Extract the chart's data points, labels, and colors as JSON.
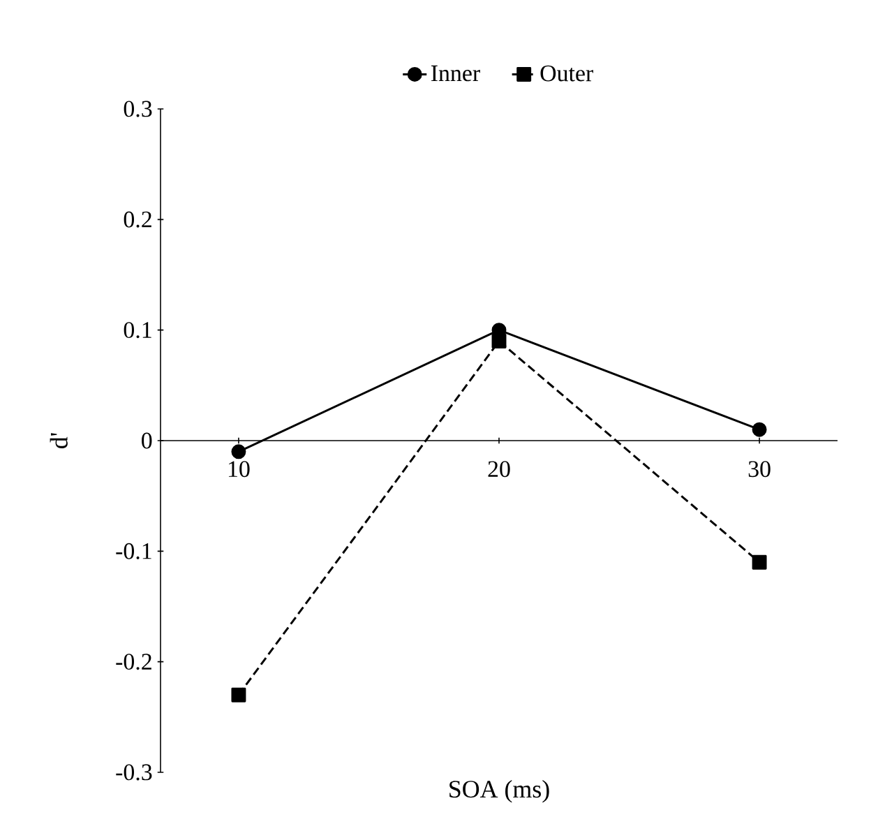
{
  "chart_data": {
    "type": "line",
    "xlabel": "SOA (ms)",
    "ylabel": "d'",
    "categories": [
      "10",
      "20",
      "30"
    ],
    "series": [
      {
        "name": "Inner",
        "color": "#000000",
        "values": [
          -0.01,
          0.1,
          0.01
        ],
        "marker": "circle",
        "line_style": "solid"
      },
      {
        "name": "Outer",
        "color": "#000000",
        "values": [
          -0.23,
          0.09,
          -0.11
        ],
        "marker": "square",
        "line_style": "dashed"
      }
    ],
    "ylim": [
      -0.3,
      0.3
    ],
    "yticks": [
      -0.3,
      -0.2,
      -0.1,
      0,
      0.1,
      0.2,
      0.3
    ],
    "grid": false,
    "legend": "top"
  }
}
